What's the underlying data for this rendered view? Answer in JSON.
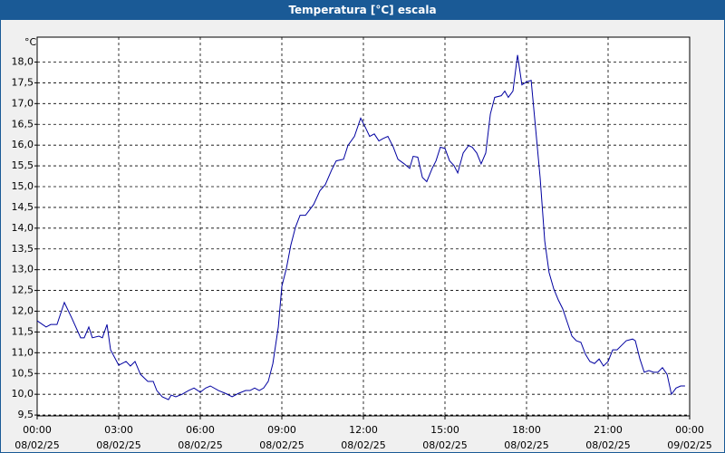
{
  "chart_data": {
    "type": "line",
    "title": "Temperatura [°C] escala",
    "y_unit": "°C",
    "xlim": [
      0,
      24
    ],
    "ylim": [
      9.48,
      18.6
    ],
    "grid": true,
    "xticks": [
      {
        "value": 0,
        "label": "00:00\n08/02/25"
      },
      {
        "value": 3,
        "label": "03:00\n08/02/25"
      },
      {
        "value": 6,
        "label": "06:00\n08/02/25"
      },
      {
        "value": 9,
        "label": "09:00\n08/02/25"
      },
      {
        "value": 12,
        "label": "12:00\n08/02/25"
      },
      {
        "value": 15,
        "label": "15:00\n08/02/25"
      },
      {
        "value": 18,
        "label": "18:00\n08/02/25"
      },
      {
        "value": 21,
        "label": "21:00\n08/02/25"
      },
      {
        "value": 24,
        "label": "00:00\n09/02/25"
      }
    ],
    "yticks": [
      {
        "value": 9.5,
        "label": "9,5"
      },
      {
        "value": 10,
        "label": "10,0"
      },
      {
        "value": 10.5,
        "label": "10,5"
      },
      {
        "value": 11,
        "label": "11,0"
      },
      {
        "value": 11.5,
        "label": "11,5"
      },
      {
        "value": 12,
        "label": "12,0"
      },
      {
        "value": 12.5,
        "label": "12,5"
      },
      {
        "value": 13,
        "label": "13,0"
      },
      {
        "value": 13.5,
        "label": "13,5"
      },
      {
        "value": 14,
        "label": "14,0"
      },
      {
        "value": 14.5,
        "label": "14,5"
      },
      {
        "value": 15,
        "label": "15,0"
      },
      {
        "value": 15.5,
        "label": "15,5"
      },
      {
        "value": 16,
        "label": "16,0"
      },
      {
        "value": 16.5,
        "label": "16,5"
      },
      {
        "value": 17,
        "label": "17,0"
      },
      {
        "value": 17.5,
        "label": "17,5"
      },
      {
        "value": 18,
        "label": "18,0"
      }
    ],
    "x": [
      0,
      0.33,
      0.5,
      0.73,
      1,
      1.27,
      1.6,
      1.73,
      1.9,
      2.03,
      2.27,
      2.4,
      2.57,
      2.7,
      3,
      3.27,
      3.43,
      3.6,
      3.8,
      4.07,
      4.27,
      4.4,
      4.6,
      4.83,
      4.93,
      5.1,
      5.33,
      5.57,
      5.77,
      6,
      6.2,
      6.37,
      6.67,
      6.93,
      7.17,
      7.4,
      7.67,
      7.83,
      8,
      8.17,
      8.33,
      8.5,
      8.67,
      8.87,
      9,
      9.17,
      9.33,
      9.5,
      9.67,
      9.87,
      10.17,
      10.4,
      10.6,
      10.83,
      11,
      11.27,
      11.43,
      11.67,
      11.9,
      12.07,
      12.23,
      12.4,
      12.57,
      12.73,
      12.9,
      13.1,
      13.27,
      13.5,
      13.7,
      13.83,
      14,
      14.17,
      14.33,
      14.53,
      14.67,
      14.83,
      15,
      15.17,
      15.33,
      15.47,
      15.67,
      15.87,
      16,
      16.17,
      16.33,
      16.5,
      16.67,
      16.83,
      17.07,
      17.2,
      17.33,
      17.5,
      17.67,
      17.83,
      18,
      18.17,
      18.33,
      18.5,
      18.67,
      18.83,
      19,
      19.17,
      19.33,
      19.5,
      19.67,
      19.83,
      20,
      20.17,
      20.33,
      20.5,
      20.67,
      20.83,
      21,
      21.17,
      21.33,
      21.5,
      21.67,
      21.9,
      22,
      22.17,
      22.33,
      22.5,
      22.67,
      22.83,
      23,
      23.17,
      23.33,
      23.5,
      23.67,
      23.83
    ],
    "series": [
      {
        "color": "#0000a0",
        "values": [
          11.77,
          11.62,
          11.68,
          11.68,
          12.21,
          11.84,
          11.36,
          11.36,
          11.62,
          11.36,
          11.4,
          11.36,
          11.68,
          11.07,
          10.7,
          10.79,
          10.68,
          10.79,
          10.48,
          10.31,
          10.31,
          10.09,
          9.94,
          9.87,
          9.98,
          9.94,
          10.0,
          10.09,
          10.15,
          10.05,
          10.15,
          10.2,
          10.09,
          10.02,
          9.94,
          10.02,
          10.09,
          10.09,
          10.15,
          10.09,
          10.15,
          10.31,
          10.74,
          11.62,
          12.6,
          13.04,
          13.59,
          14.02,
          14.31,
          14.31,
          14.57,
          14.9,
          15.05,
          15.4,
          15.62,
          15.66,
          15.99,
          16.21,
          16.65,
          16.43,
          16.21,
          16.27,
          16.1,
          16.16,
          16.21,
          15.95,
          15.66,
          15.55,
          15.44,
          15.73,
          15.71,
          15.22,
          15.12,
          15.44,
          15.62,
          15.95,
          15.92,
          15.62,
          15.51,
          15.33,
          15.81,
          15.99,
          15.95,
          15.81,
          15.55,
          15.81,
          16.75,
          17.15,
          17.19,
          17.3,
          17.15,
          17.3,
          18.17,
          17.45,
          17.52,
          17.56,
          16.43,
          15.22,
          13.69,
          12.93,
          12.54,
          12.27,
          12.06,
          11.73,
          11.4,
          11.29,
          11.25,
          10.96,
          10.79,
          10.74,
          10.85,
          10.68,
          10.79,
          11.07,
          11.07,
          11.18,
          11.29,
          11.33,
          11.29,
          10.85,
          10.53,
          10.57,
          10.53,
          10.53,
          10.64,
          10.48,
          10.0,
          10.15,
          10.2,
          10.2
        ]
      }
    ]
  }
}
